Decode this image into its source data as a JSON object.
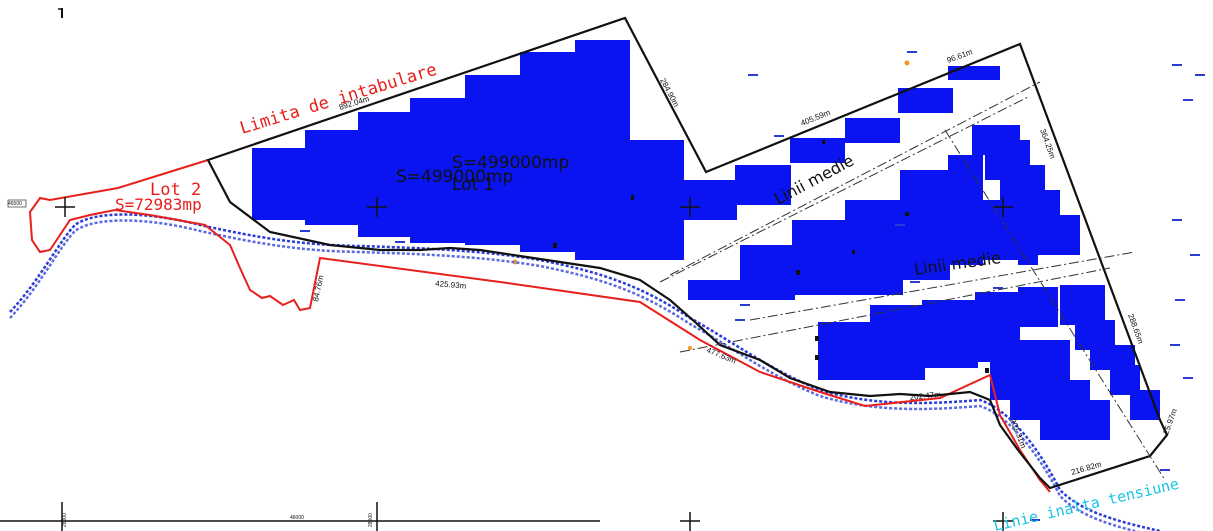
{
  "colors": {
    "boundary": "#111111",
    "lot2": "#e8201c",
    "panels": "#0a14f0",
    "river": "#2a3cd6",
    "power_line": "#19c4e6",
    "accent_orange": "#f29a1b"
  },
  "labels": {
    "limita": "Limita de intabulare",
    "lot2_name": "Lot 2",
    "lot2_area": "S=72983mp",
    "area_main_a": "S=499000mp",
    "area_main_b": "S=499000mp",
    "lot1_name": "Lot 1",
    "linii_medie_1": "Linii medie",
    "linii_medie_2": "Linii medie",
    "linie_inalta": "Linie inalta tensiune"
  },
  "measurements": {
    "m_892": "892.04m",
    "m_284": "284.90m",
    "m_405": "405.59m",
    "m_96": "96.61m",
    "m_364": "364.25m",
    "m_288": "288.65m",
    "m_425": "425.93m",
    "m_84": "84.76m",
    "m_477": "477.63m",
    "m_202": "202.47m",
    "m_201": "201.31m",
    "m_216": "216.82m",
    "m_25": "25.97m"
  },
  "ruler": {
    "left_tick": "46500",
    "mid": "46000",
    "tick_a": "28000",
    "tick_b": "28000"
  },
  "icons": [
    "survey-cross-icon",
    "north-marker-icon"
  ]
}
